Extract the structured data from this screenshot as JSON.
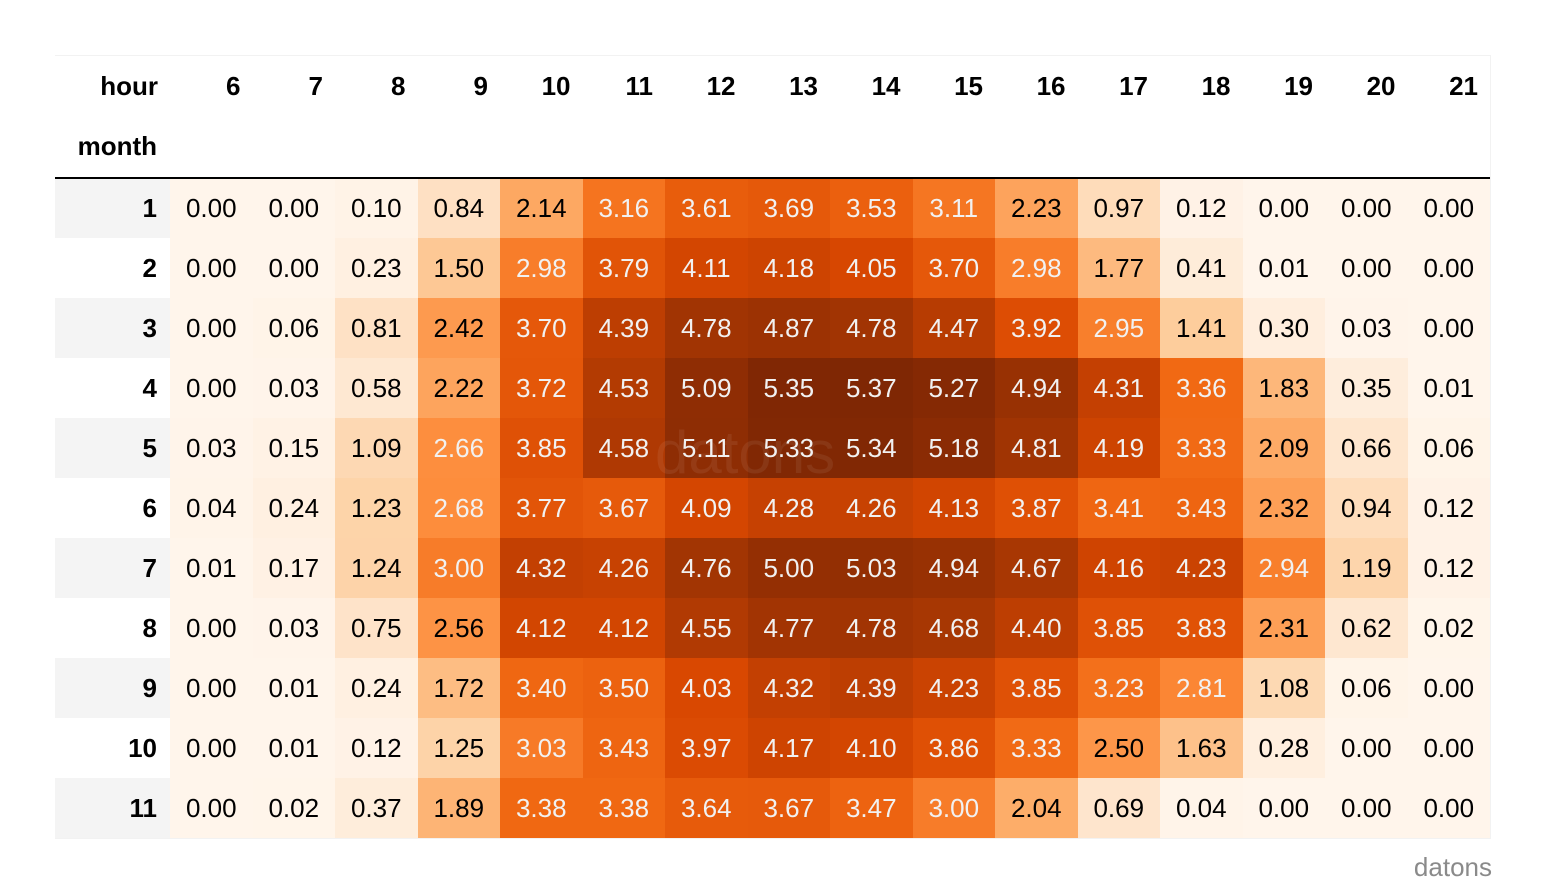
{
  "table": {
    "column_axis_label": "hour",
    "row_axis_label": "month",
    "columns": [
      "6",
      "7",
      "8",
      "9",
      "10",
      "11",
      "12",
      "13",
      "14",
      "15",
      "16",
      "17",
      "18",
      "19",
      "20",
      "21"
    ],
    "rows": [
      {
        "month": "1",
        "values": [
          "0.00",
          "0.00",
          "0.10",
          "0.84",
          "2.14",
          "3.16",
          "3.61",
          "3.69",
          "3.53",
          "3.11",
          "2.23",
          "0.97",
          "0.12",
          "0.00",
          "0.00",
          "0.00"
        ]
      },
      {
        "month": "2",
        "values": [
          "0.00",
          "0.00",
          "0.23",
          "1.50",
          "2.98",
          "3.79",
          "4.11",
          "4.18",
          "4.05",
          "3.70",
          "2.98",
          "1.77",
          "0.41",
          "0.01",
          "0.00",
          "0.00"
        ]
      },
      {
        "month": "3",
        "values": [
          "0.00",
          "0.06",
          "0.81",
          "2.42",
          "3.70",
          "4.39",
          "4.78",
          "4.87",
          "4.78",
          "4.47",
          "3.92",
          "2.95",
          "1.41",
          "0.30",
          "0.03",
          "0.00"
        ]
      },
      {
        "month": "4",
        "values": [
          "0.00",
          "0.03",
          "0.58",
          "2.22",
          "3.72",
          "4.53",
          "5.09",
          "5.35",
          "5.37",
          "5.27",
          "4.94",
          "4.31",
          "3.36",
          "1.83",
          "0.35",
          "0.01"
        ]
      },
      {
        "month": "5",
        "values": [
          "0.03",
          "0.15",
          "1.09",
          "2.66",
          "3.85",
          "4.58",
          "5.11",
          "5.33",
          "5.34",
          "5.18",
          "4.81",
          "4.19",
          "3.33",
          "2.09",
          "0.66",
          "0.06"
        ]
      },
      {
        "month": "6",
        "values": [
          "0.04",
          "0.24",
          "1.23",
          "2.68",
          "3.77",
          "3.67",
          "4.09",
          "4.28",
          "4.26",
          "4.13",
          "3.87",
          "3.41",
          "3.43",
          "2.32",
          "0.94",
          "0.12"
        ]
      },
      {
        "month": "7",
        "values": [
          "0.01",
          "0.17",
          "1.24",
          "3.00",
          "4.32",
          "4.26",
          "4.76",
          "5.00",
          "5.03",
          "4.94",
          "4.67",
          "4.16",
          "4.23",
          "2.94",
          "1.19",
          "0.12"
        ]
      },
      {
        "month": "8",
        "values": [
          "0.00",
          "0.03",
          "0.75",
          "2.56",
          "4.12",
          "4.12",
          "4.55",
          "4.77",
          "4.78",
          "4.68",
          "4.40",
          "3.85",
          "3.83",
          "2.31",
          "0.62",
          "0.02"
        ]
      },
      {
        "month": "9",
        "values": [
          "0.00",
          "0.01",
          "0.24",
          "1.72",
          "3.40",
          "3.50",
          "4.03",
          "4.32",
          "4.39",
          "4.23",
          "3.85",
          "3.23",
          "2.81",
          "1.08",
          "0.06",
          "0.00"
        ]
      },
      {
        "month": "10",
        "values": [
          "0.00",
          "0.01",
          "0.12",
          "1.25",
          "3.03",
          "3.43",
          "3.97",
          "4.17",
          "4.10",
          "3.86",
          "3.33",
          "2.50",
          "1.63",
          "0.28",
          "0.00",
          "0.00"
        ]
      },
      {
        "month": "11",
        "values": [
          "0.00",
          "0.02",
          "0.37",
          "1.89",
          "3.38",
          "3.38",
          "3.64",
          "3.67",
          "3.47",
          "3.00",
          "2.04",
          "0.69",
          "0.04",
          "0.00",
          "0.00",
          "0.00"
        ]
      }
    ]
  },
  "colormap": {
    "name": "Oranges",
    "vmin": 0.0,
    "vmax": 5.37,
    "stops": [
      "#fff5eb",
      "#fee6ce",
      "#fdd0a2",
      "#fdae6b",
      "#fd8d3c",
      "#f16913",
      "#d94801",
      "#a63603",
      "#7f2704"
    ],
    "text_dark": "#000000",
    "text_light": "#f1f1f1",
    "light_text_threshold": 2.6
  },
  "watermark": "datons",
  "credit": "datons",
  "chart_data": {
    "type": "heatmap",
    "title": "",
    "xlabel": "hour",
    "ylabel": "month",
    "x": [
      6,
      7,
      8,
      9,
      10,
      11,
      12,
      13,
      14,
      15,
      16,
      17,
      18,
      19,
      20,
      21
    ],
    "y": [
      1,
      2,
      3,
      4,
      5,
      6,
      7,
      8,
      9,
      10,
      11
    ],
    "values": [
      [
        0.0,
        0.0,
        0.1,
        0.84,
        2.14,
        3.16,
        3.61,
        3.69,
        3.53,
        3.11,
        2.23,
        0.97,
        0.12,
        0.0,
        0.0,
        0.0
      ],
      [
        0.0,
        0.0,
        0.23,
        1.5,
        2.98,
        3.79,
        4.11,
        4.18,
        4.05,
        3.7,
        2.98,
        1.77,
        0.41,
        0.01,
        0.0,
        0.0
      ],
      [
        0.0,
        0.06,
        0.81,
        2.42,
        3.7,
        4.39,
        4.78,
        4.87,
        4.78,
        4.47,
        3.92,
        2.95,
        1.41,
        0.3,
        0.03,
        0.0
      ],
      [
        0.0,
        0.03,
        0.58,
        2.22,
        3.72,
        4.53,
        5.09,
        5.35,
        5.37,
        5.27,
        4.94,
        4.31,
        3.36,
        1.83,
        0.35,
        0.01
      ],
      [
        0.03,
        0.15,
        1.09,
        2.66,
        3.85,
        4.58,
        5.11,
        5.33,
        5.34,
        5.18,
        4.81,
        4.19,
        3.33,
        2.09,
        0.66,
        0.06
      ],
      [
        0.04,
        0.24,
        1.23,
        2.68,
        3.77,
        3.67,
        4.09,
        4.28,
        4.26,
        4.13,
        3.87,
        3.41,
        3.43,
        2.32,
        0.94,
        0.12
      ],
      [
        0.01,
        0.17,
        1.24,
        3.0,
        4.32,
        4.26,
        4.76,
        5.0,
        5.03,
        4.94,
        4.67,
        4.16,
        4.23,
        2.94,
        1.19,
        0.12
      ],
      [
        0.0,
        0.03,
        0.75,
        2.56,
        4.12,
        4.12,
        4.55,
        4.77,
        4.78,
        4.68,
        4.4,
        3.85,
        3.83,
        2.31,
        0.62,
        0.02
      ],
      [
        0.0,
        0.01,
        0.24,
        1.72,
        3.4,
        3.5,
        4.03,
        4.32,
        4.39,
        4.23,
        3.85,
        3.23,
        2.81,
        1.08,
        0.06,
        0.0
      ],
      [
        0.0,
        0.01,
        0.12,
        1.25,
        3.03,
        3.43,
        3.97,
        4.17,
        4.1,
        3.86,
        3.33,
        2.5,
        1.63,
        0.28,
        0.0,
        0.0
      ],
      [
        0.0,
        0.02,
        0.37,
        1.89,
        3.38,
        3.38,
        3.64,
        3.67,
        3.47,
        3.0,
        2.04,
        0.69,
        0.04,
        0.0,
        0.0,
        0.0
      ]
    ],
    "colormap": "Oranges",
    "value_format": "0.00",
    "grid": false,
    "legend": "none"
  }
}
